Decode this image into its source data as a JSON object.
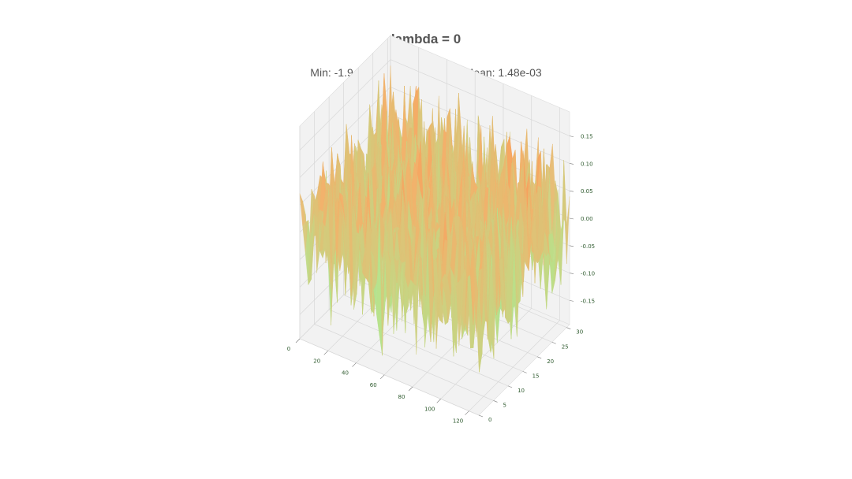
{
  "chart_data": {
    "type": "surface",
    "title": "lambda = 0",
    "subtitle": "Min: -1.94e-01, Max: 1.94e-01, Mean: 1.48e-03",
    "x_ticks": [
      0,
      20,
      40,
      60,
      80,
      100,
      120
    ],
    "xlim": [
      0,
      127
    ],
    "y_ticks": [
      0,
      5,
      10,
      15,
      20,
      25,
      30
    ],
    "ylim": [
      0,
      31
    ],
    "z_ticks": [
      -0.15,
      -0.1,
      -0.05,
      0.0,
      0.05,
      0.1,
      0.15
    ],
    "z_tick_labels": [
      "-0.15",
      "-0.10",
      "-0.05",
      "0.00",
      "0.05",
      "0.10",
      "0.15"
    ],
    "zlim": [
      -0.194,
      0.194
    ],
    "z_min": -0.194,
    "z_max": 0.194,
    "z_mean": 0.00148,
    "colormap": [
      "#7ff5b4",
      "#b9e08a",
      "#f3b06a",
      "#ff6a30"
    ],
    "grid": true
  }
}
